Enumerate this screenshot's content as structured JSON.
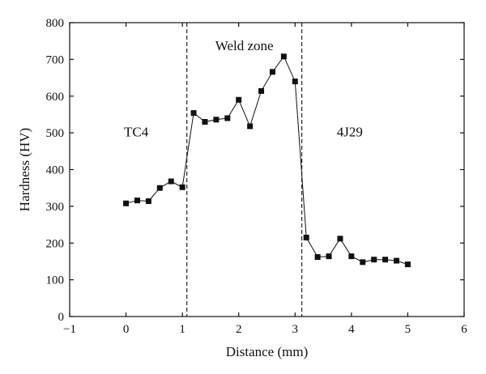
{
  "chart_data": {
    "type": "line",
    "xlabel": "Distance (mm)",
    "ylabel": "Hardness (HV)",
    "xlim": [
      -1,
      6
    ],
    "ylim": [
      0,
      800
    ],
    "xticks": [
      -1,
      0,
      1,
      2,
      3,
      4,
      5,
      6
    ],
    "yticks": [
      0,
      100,
      200,
      300,
      400,
      500,
      600,
      700,
      800
    ],
    "grid": false,
    "legend": "none",
    "marker": "square",
    "colors": {
      "line": "#111111",
      "marker": "#111111",
      "axis": "#111111"
    },
    "series": [
      {
        "x": [
          0,
          0.2,
          0.4,
          0.6,
          0.8,
          1.0,
          1.2,
          1.4,
          1.6,
          1.8,
          2.0,
          2.2,
          2.4,
          2.6,
          2.8,
          3.0,
          3.2,
          3.4,
          3.6,
          3.8,
          4.0,
          4.2,
          4.4,
          4.6,
          4.8,
          5.0
        ],
        "y": [
          308,
          316,
          314,
          350,
          368,
          352,
          554,
          530,
          536,
          540,
          590,
          518,
          614,
          666,
          708,
          640,
          215,
          162,
          164,
          212,
          164,
          148,
          155,
          155,
          152,
          142
        ]
      }
    ],
    "vlines": [
      {
        "x": 1.08,
        "style": "dashed"
      },
      {
        "x": 3.12,
        "style": "dashed"
      }
    ],
    "annotations": [
      {
        "text": "TC4",
        "x": 0.18,
        "y": 490
      },
      {
        "text": "Weld zone",
        "x": 2.1,
        "y": 725
      },
      {
        "text": "4J29",
        "x": 3.97,
        "y": 490
      }
    ]
  }
}
